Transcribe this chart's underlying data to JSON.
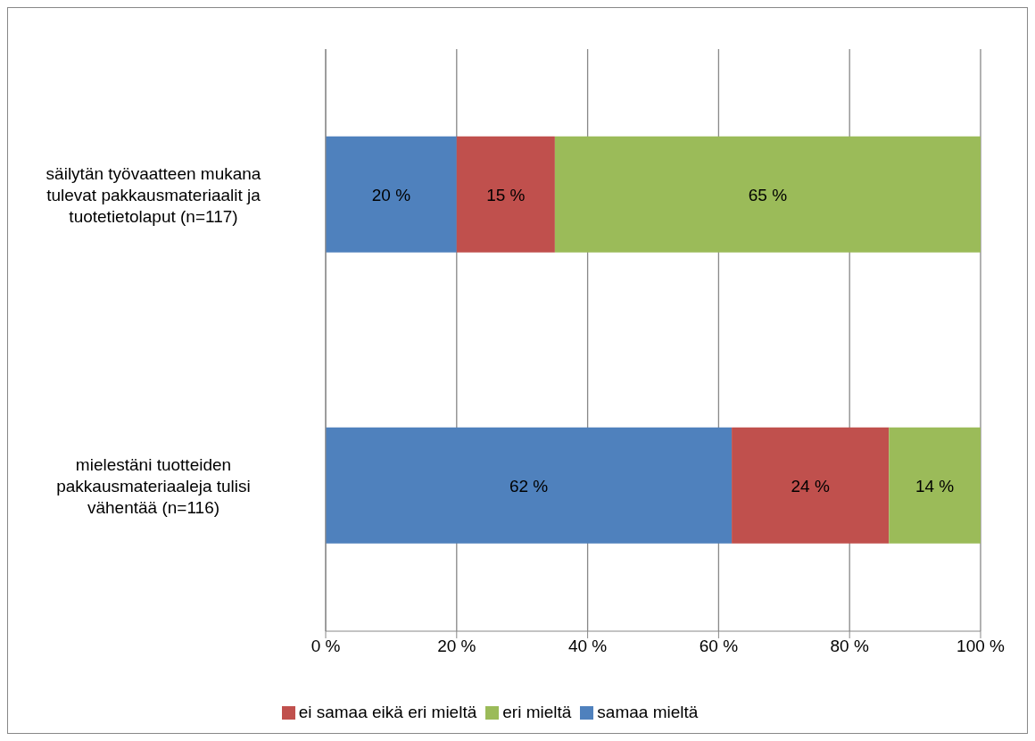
{
  "chart_data": {
    "type": "bar",
    "orientation": "horizontal",
    "stacked": true,
    "categories": [
      "säilytän työvaatteen mukana tulevat pakkausmateriaalit ja tuotetietolaput (n=117)",
      "mielestäni tuotteiden pakkausmateriaaleja tulisi vähentää (n=116)"
    ],
    "series": [
      {
        "name": "samaa mieltä",
        "color": "#4f81bd",
        "values": [
          20,
          62
        ],
        "value_labels": [
          "20 %",
          "62 %"
        ]
      },
      {
        "name": "ei samaa eikä eri mieltä",
        "color": "#c0504d",
        "values": [
          15,
          24
        ],
        "value_labels": [
          "15 %",
          "24 %"
        ]
      },
      {
        "name": "eri mieltä",
        "color": "#9bbb59",
        "values": [
          65,
          14
        ],
        "value_labels": [
          "65 %",
          "14 %"
        ]
      }
    ],
    "xlim": [
      0,
      100
    ],
    "xticks": [
      {
        "value": 0,
        "label": "0 %"
      },
      {
        "value": 20,
        "label": "20 %"
      },
      {
        "value": 40,
        "label": "40 %"
      },
      {
        "value": 60,
        "label": "60 %"
      },
      {
        "value": 80,
        "label": "80 %"
      },
      {
        "value": 100,
        "label": "100 %"
      }
    ],
    "grid": "x",
    "legend": "bottom"
  }
}
